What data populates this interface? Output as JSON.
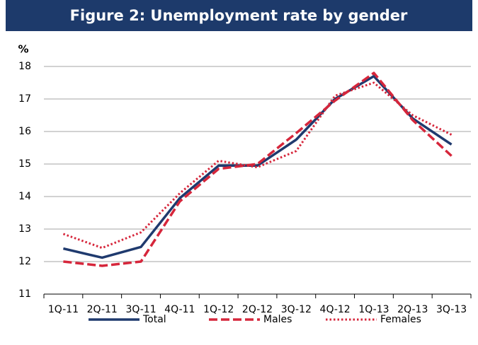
{
  "chart_data": {
    "type": "line",
    "title": "Figure 2: Unemployment rate by gender",
    "y_label": "%",
    "categories": [
      "1Q-11",
      "2Q-11",
      "3Q-11",
      "4Q-11",
      "1Q-12",
      "2Q-12",
      "3Q-12",
      "4Q-12",
      "1Q-13",
      "2Q-13",
      "3Q-13"
    ],
    "series": [
      {
        "name": "Total",
        "color": "#1f3a6e",
        "style": "solid",
        "values": [
          12.4,
          12.12,
          12.45,
          13.95,
          14.95,
          14.95,
          15.75,
          17.0,
          17.7,
          16.4,
          15.6
        ]
      },
      {
        "name": "Males",
        "color": "#d6263b",
        "style": "dashed",
        "values": [
          12.0,
          11.87,
          12.0,
          13.85,
          14.85,
          15.0,
          15.95,
          16.95,
          17.8,
          16.35,
          15.25
        ]
      },
      {
        "name": "Females",
        "color": "#d6263b",
        "style": "dotted",
        "values": [
          12.85,
          12.42,
          12.9,
          14.1,
          15.1,
          14.9,
          15.4,
          17.1,
          17.5,
          16.5,
          15.9
        ]
      }
    ],
    "ylim": [
      11,
      18
    ],
    "yticks": [
      11,
      12,
      13,
      14,
      15,
      16,
      17,
      18
    ],
    "grid": true,
    "legend": "bottom"
  }
}
